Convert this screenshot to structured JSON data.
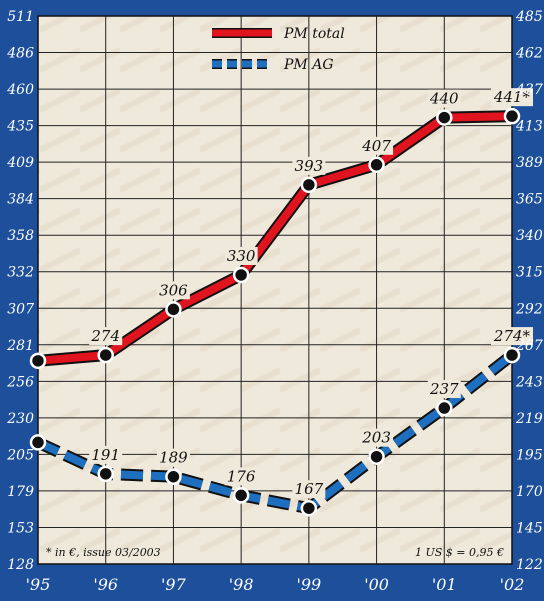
{
  "chart_data": {
    "type": "line",
    "x": [
      "'95",
      "'96",
      "'97",
      "'98",
      "'99",
      "'00",
      "'01",
      "'02"
    ],
    "series": [
      {
        "name": "PM total",
        "color": "#e0141e",
        "values": [
          270,
          274,
          306,
          330,
          393,
          407,
          440,
          441
        ],
        "labels": [
          "",
          "274",
          "306",
          "330",
          "393",
          "407",
          "440",
          "441*"
        ]
      },
      {
        "name": "PM AG",
        "color": "#1f6fc0",
        "values": [
          213,
          191,
          189,
          176,
          167,
          203,
          237,
          274
        ],
        "labels": [
          "",
          "191",
          "189",
          "176",
          "167",
          "203",
          "237",
          "274*"
        ]
      }
    ],
    "ylim": [
      128,
      511
    ],
    "left_ticks": [
      "511",
      "486",
      "460",
      "435",
      "409",
      "384",
      "358",
      "332",
      "307",
      "281",
      "256",
      "230",
      "205",
      "179",
      "153",
      "128"
    ],
    "right_ticks": [
      "485",
      "462",
      "437",
      "413",
      "389",
      "365",
      "340",
      "315",
      "292",
      "267",
      "243",
      "219",
      "195",
      "170",
      "145",
      "122"
    ],
    "grid": true,
    "legend": "top-center",
    "notes": {
      "left": "* in €, issue 03/2003",
      "right": "1 US $ = 0,95 €"
    }
  }
}
